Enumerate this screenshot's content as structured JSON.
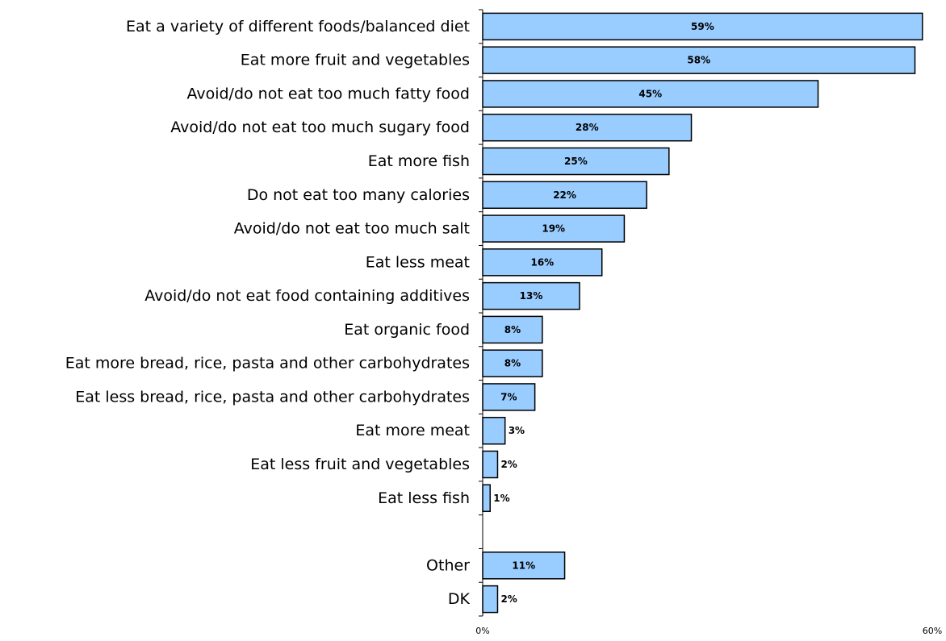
{
  "chart_data": {
    "type": "bar",
    "orientation": "horizontal",
    "title": "",
    "xlabel": "",
    "ylabel": "",
    "xlim": [
      0,
      60
    ],
    "grid": false,
    "legend": "none",
    "bar_color": "#99ccff",
    "categories": [
      "Eat a variety of different foods/balanced diet",
      "Eat more fruit and vegetables",
      "Avoid/do not eat too much fatty food",
      "Avoid/do not eat too much sugary food",
      "Eat more fish",
      "Do not eat too many calories",
      "Avoid/do not eat too much salt",
      "Eat less meat",
      "Avoid/do not eat food containing additives",
      "Eat organic food",
      "Eat more bread, rice, pasta and other carbohydrates",
      "Eat less bread, rice, pasta and other carbohydrates",
      "Eat more meat",
      "Eat less fruit and vegetables",
      "Eat less fish",
      "",
      "Other",
      "DK"
    ],
    "values": [
      59,
      58,
      45,
      28,
      25,
      22,
      19,
      16,
      13,
      8,
      8,
      7,
      3,
      2,
      1,
      null,
      11,
      2
    ],
    "value_labels": [
      "59%",
      "58%",
      "45%",
      "28%",
      "25%",
      "22%",
      "19%",
      "16%",
      "13%",
      "8%",
      "8%",
      "7%",
      "3%",
      "2%",
      "1%",
      "",
      "11%",
      "2%"
    ],
    "x_tick_labels": [
      "0%",
      "60%"
    ]
  }
}
